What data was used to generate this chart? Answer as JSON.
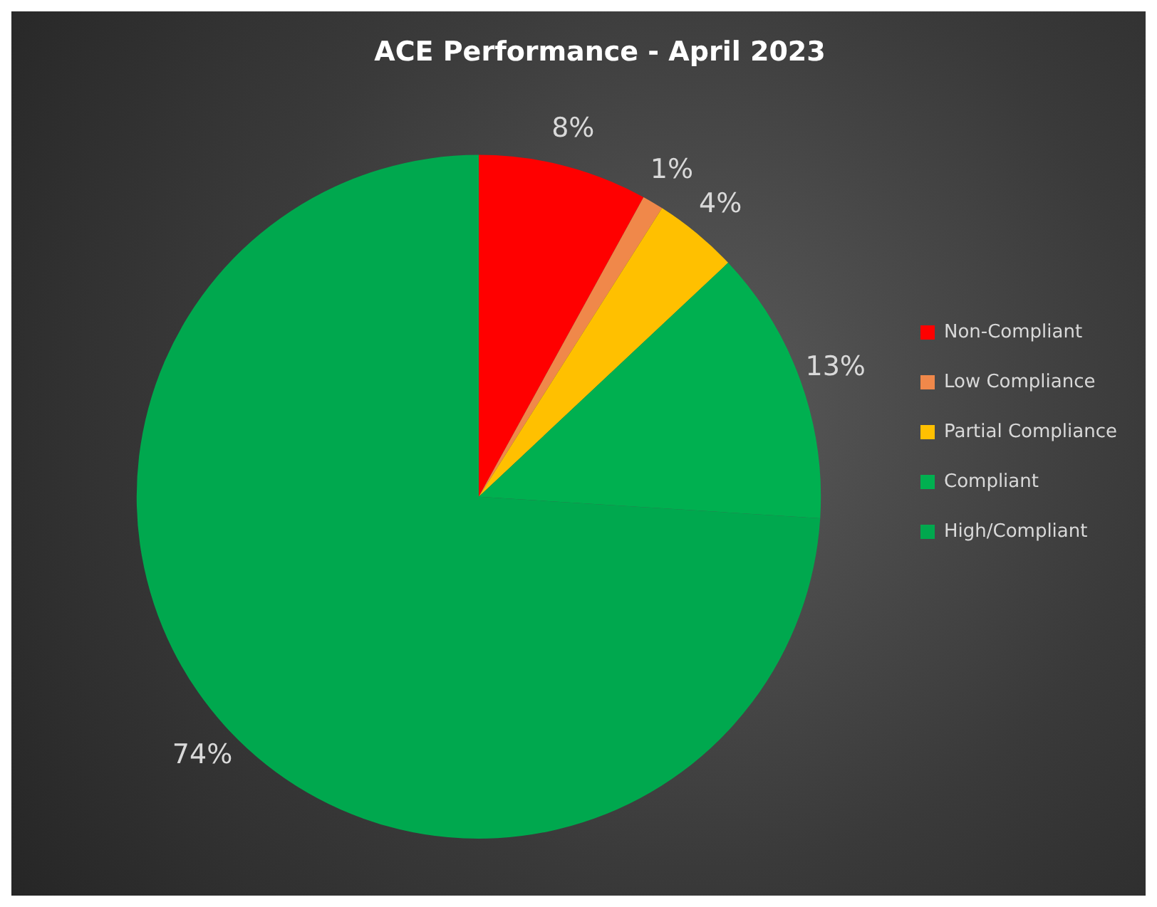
{
  "chart_data": {
    "type": "pie",
    "title": "ACE Performance - April 2023",
    "categories": [
      "Non-Compliant",
      "Low Compliance",
      "Partial Compliance",
      "Compliant",
      "High/Compliant"
    ],
    "values": [
      8,
      1,
      4,
      13,
      74
    ],
    "colors": [
      "#ff0000",
      "#f0884a",
      "#ffc000",
      "#00b050",
      "#00a84e"
    ],
    "value_labels": [
      "8%",
      "1%",
      "4%",
      "13%",
      "74%"
    ],
    "legend": "right"
  }
}
